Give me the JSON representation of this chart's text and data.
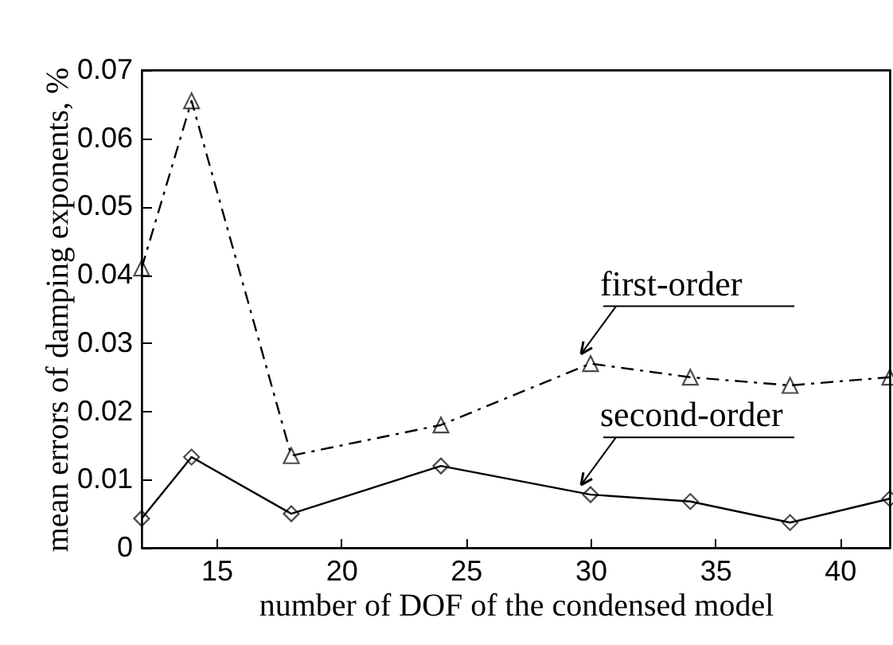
{
  "chart_data": {
    "type": "line",
    "xlabel": "number of DOF of the condensed model",
    "ylabel": "mean errors of damping exponents, %",
    "x": [
      12,
      14,
      18,
      24,
      30,
      34,
      38,
      42
    ],
    "series": [
      {
        "name": "first-order",
        "color": "#000000",
        "marker": "triangle",
        "line_style": "dashed",
        "values": [
          0.041,
          0.0655,
          0.0135,
          0.018,
          0.027,
          0.025,
          0.0238,
          0.025
        ]
      },
      {
        "name": "second-order",
        "color": "#000000",
        "marker": "diamond",
        "line_style": "solid",
        "values": [
          0.0043,
          0.0133,
          0.005,
          0.012,
          0.0078,
          0.0068,
          0.0037,
          0.0072
        ]
      }
    ],
    "xlim": [
      12,
      42
    ],
    "xticks": [
      15,
      20,
      25,
      30,
      35,
      40
    ],
    "ylim": [
      0,
      0.07
    ],
    "yticks": [
      0,
      0.01,
      0.02,
      0.03,
      0.04,
      0.05,
      0.06,
      0.07
    ]
  }
}
